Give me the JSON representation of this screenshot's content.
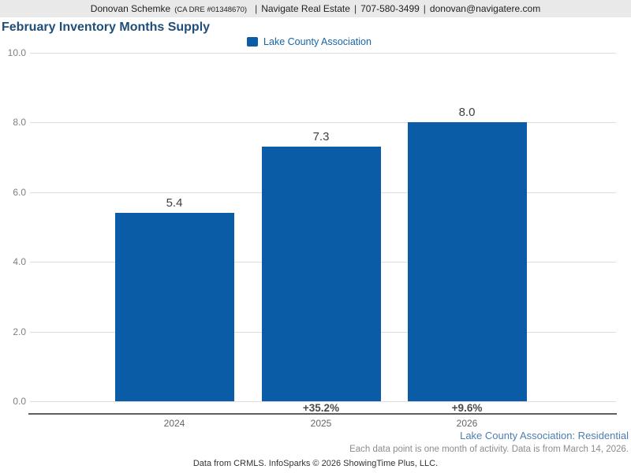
{
  "header": {
    "name": "Donovan Schemke",
    "license": "(CA DRE #01348670)",
    "separator": "|",
    "company": "Navigate Real Estate",
    "phone": "707-580-3499",
    "email": "donovan@navigatere.com"
  },
  "title": "February Inventory Months Supply",
  "legend": {
    "label": "Lake County Association",
    "color": "#0b5ca6"
  },
  "chart_data": {
    "type": "bar",
    "title": "February Inventory Months Supply",
    "series_name": "Lake County Association",
    "categories": [
      "2024",
      "2025",
      "2026"
    ],
    "values": [
      5.4,
      7.3,
      8.0
    ],
    "value_labels": [
      "5.4",
      "7.3",
      "8.0"
    ],
    "pct_change_labels": [
      "",
      "+35.2%",
      "+9.6%"
    ],
    "ylim": [
      0,
      10
    ],
    "ytick_labels": [
      "10.0",
      "8.0",
      "6.0",
      "4.0",
      "2.0",
      "0.0"
    ],
    "grid": true,
    "legend_position": "top-center",
    "bar_color": "#0b5ca6"
  },
  "colors": {
    "title": "#1f4e79",
    "bar": "#0b5ca6",
    "footer_series": "#4d7eb2",
    "header_background": "#e9e9e9"
  },
  "footer": {
    "series_line": "Lake County Association: Residential",
    "note_line": "Each data point is one month of activity. Data is from March 14, 2026.",
    "credit_line": "Data from CRMLS. InfoSparks © 2026 ShowingTime Plus, LLC."
  }
}
